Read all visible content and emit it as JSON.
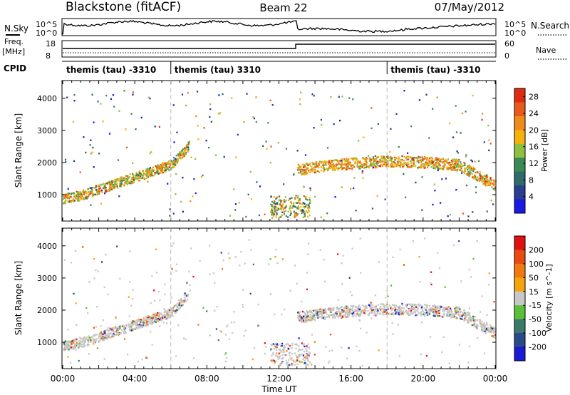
{
  "header": {
    "radar": "Blackstone (fitACF)",
    "beam": "Beam 22",
    "date": "07/May/2012"
  },
  "labels": {
    "nsky": "N.Sky",
    "nsearch": "N.Search",
    "freq": "Freq.",
    "freq_unit": "[MHz]",
    "nave": "Nave",
    "cpid": "CPID"
  },
  "noise_axis": {
    "left_ticks": [
      "10^5",
      "10^0"
    ],
    "right_ticks": [
      "10^5",
      "10^0"
    ]
  },
  "freq_axis": {
    "left_ticks": [
      "18",
      "8"
    ],
    "right_ticks": [
      "60",
      "0"
    ]
  },
  "cpid_segments": [
    {
      "start_hour": 0.0,
      "label": "themis (tau) -3310"
    },
    {
      "start_hour": 6.0,
      "label": "themis (tau) 3310"
    },
    {
      "start_hour": 18.0,
      "label": "themis (tau) -3310"
    }
  ],
  "chart_data": [
    {
      "type": "heatmap",
      "quantity": "power",
      "ylabel": "Slant Range [km]",
      "xlabel": "",
      "x_range_hours": [
        0,
        24
      ],
      "ylim": [
        180,
        4550
      ],
      "y_ticks": [
        1000,
        2000,
        3000,
        4000
      ],
      "colorbar": {
        "label": "Power [dB]",
        "ticks": [
          4,
          8,
          12,
          16,
          20,
          24,
          28
        ],
        "colors": [
          "#1a1ae6",
          "#2a3d8f",
          "#2e6b6b",
          "#3a8a55",
          "#8fbf3f",
          "#f5b20a",
          "#f08a1a",
          "#e85a1a",
          "#e02a12"
        ],
        "range": [
          0,
          30
        ]
      }
    },
    {
      "type": "heatmap",
      "quantity": "velocity",
      "ylabel": "Slant Range [km]",
      "xlabel": "Time UT",
      "x_range_hours": [
        0,
        24
      ],
      "ylim": [
        180,
        4550
      ],
      "y_ticks": [
        1000,
        2000,
        3000,
        4000
      ],
      "x_ticks": [
        "00:00",
        "04:00",
        "08:00",
        "12:00",
        "16:00",
        "20:00",
        "00:00"
      ],
      "colorbar": {
        "label": "Velocity [m s^-1]",
        "ticks": [
          200,
          100,
          50,
          15,
          -15,
          -50,
          -100,
          -200
        ],
        "colors": [
          "#1a1ad6",
          "#2a4a8a",
          "#3a7a6a",
          "#5bbf3a",
          "#c8c8c8",
          "#f5a50a",
          "#f07a10",
          "#e84a10",
          "#e01010"
        ]
      }
    }
  ]
}
